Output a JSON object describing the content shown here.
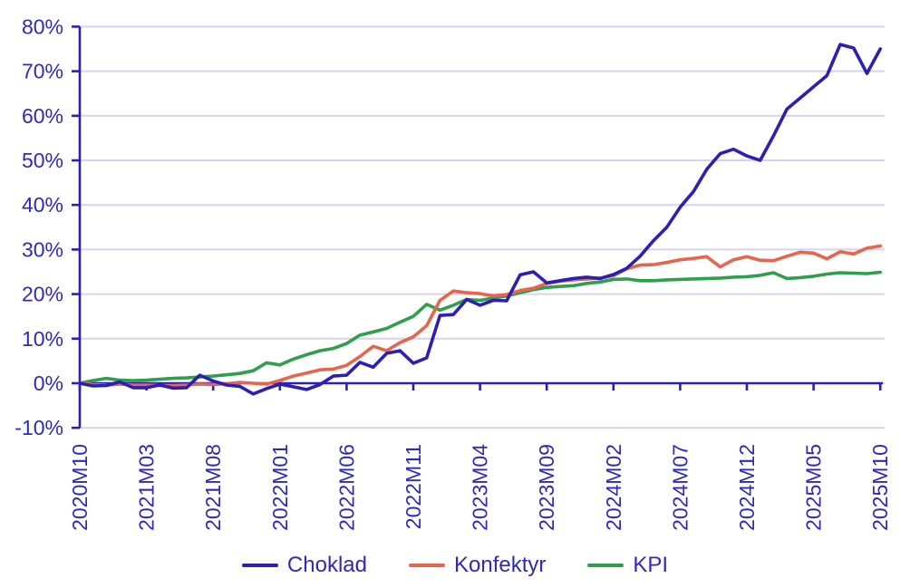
{
  "chart_data": {
    "type": "line",
    "title": "",
    "x_start": "2020M10",
    "x_end": "2025M10",
    "x_interval": "monthly",
    "x_tick_labels": [
      "2020M10",
      "2021M03",
      "2021M08",
      "2022M01",
      "2022M06",
      "2022M11",
      "2023M04",
      "2023M09",
      "2024M02",
      "2024M07",
      "2024M12",
      "2025M05",
      "2025M10"
    ],
    "y_tick_labels": [
      "80%",
      "70%",
      "60%",
      "50%",
      "40%",
      "30%",
      "20%",
      "10%",
      "0%",
      "-10%"
    ],
    "y_ticks": [
      80,
      70,
      60,
      50,
      40,
      30,
      20,
      10,
      0,
      -10
    ],
    "ylim": [
      -10,
      80
    ],
    "y_unit": "%",
    "grid": "horizontal",
    "legend_position": "bottom",
    "series": [
      {
        "name": "Choklad",
        "color": "#2b1fb5",
        "values": [
          0,
          -0.6,
          -0.5,
          0.3,
          -1.0,
          -1.0,
          -0.4,
          -1.1,
          -1.0,
          1.8,
          0.5,
          -0.4,
          -0.7,
          -2.4,
          -1.2,
          -0.2,
          -0.8,
          -1.4,
          -0.3,
          1.6,
          1.8,
          4.7,
          3.6,
          6.7,
          7.3,
          4.5,
          5.7,
          15.2,
          15.4,
          18.8,
          17.5,
          18.6,
          18.5,
          24.3,
          25.0,
          22.5,
          23.0,
          23.5,
          23.8,
          23.5,
          24.4,
          25.8,
          28.5,
          32.0,
          35.0,
          39.5,
          43.0,
          48.0,
          51.5,
          52.5,
          51.0,
          50.0,
          55.5,
          61.5,
          64.0,
          66.5,
          69.0,
          76.0,
          75.2,
          69.5,
          75.0
        ]
      },
      {
        "name": "Konfektyr",
        "color": "#e8644c",
        "values": [
          0,
          -0.3,
          -0.4,
          -0.2,
          -0.4,
          -0.4,
          -0.5,
          -0.5,
          -0.4,
          -0.2,
          -0.3,
          -0.1,
          0.2,
          0.0,
          -0.2,
          0.6,
          1.6,
          2.3,
          3.0,
          3.2,
          4.0,
          6.0,
          8.3,
          7.3,
          9.1,
          10.4,
          12.9,
          18.6,
          20.7,
          20.3,
          20.1,
          19.6,
          19.9,
          20.8,
          21.3,
          22.4,
          22.9,
          23.2,
          23.4,
          23.6,
          24.1,
          25.7,
          26.5,
          26.6,
          27.1,
          27.7,
          28.0,
          28.4,
          26.1,
          27.7,
          28.4,
          27.6,
          27.5,
          28.5,
          29.4,
          29.2,
          27.9,
          29.5,
          29.0,
          30.3,
          30.8
        ]
      },
      {
        "name": "KPI",
        "color": "#2f9e4d",
        "values": [
          0,
          0.6,
          1.1,
          0.7,
          0.6,
          0.7,
          0.9,
          1.1,
          1.2,
          1.4,
          1.6,
          1.9,
          2.2,
          2.8,
          4.6,
          4.1,
          5.4,
          6.4,
          7.3,
          7.8,
          8.9,
          10.8,
          11.5,
          12.3,
          13.7,
          15.0,
          17.7,
          16.4,
          17.5,
          18.8,
          18.6,
          19.1,
          19.6,
          20.3,
          21.0,
          21.5,
          21.7,
          21.9,
          22.4,
          22.7,
          23.3,
          23.4,
          23.0,
          23.0,
          23.2,
          23.3,
          23.4,
          23.5,
          23.6,
          23.8,
          23.9,
          24.2,
          24.8,
          23.5,
          23.7,
          24.0,
          24.5,
          24.8,
          24.7,
          24.6,
          24.9
        ]
      }
    ]
  },
  "colors": {
    "axis": "#2b1fb5",
    "label_text": "#2e2abb",
    "gridline": "#d7d2ef",
    "background": "#ffffff"
  }
}
